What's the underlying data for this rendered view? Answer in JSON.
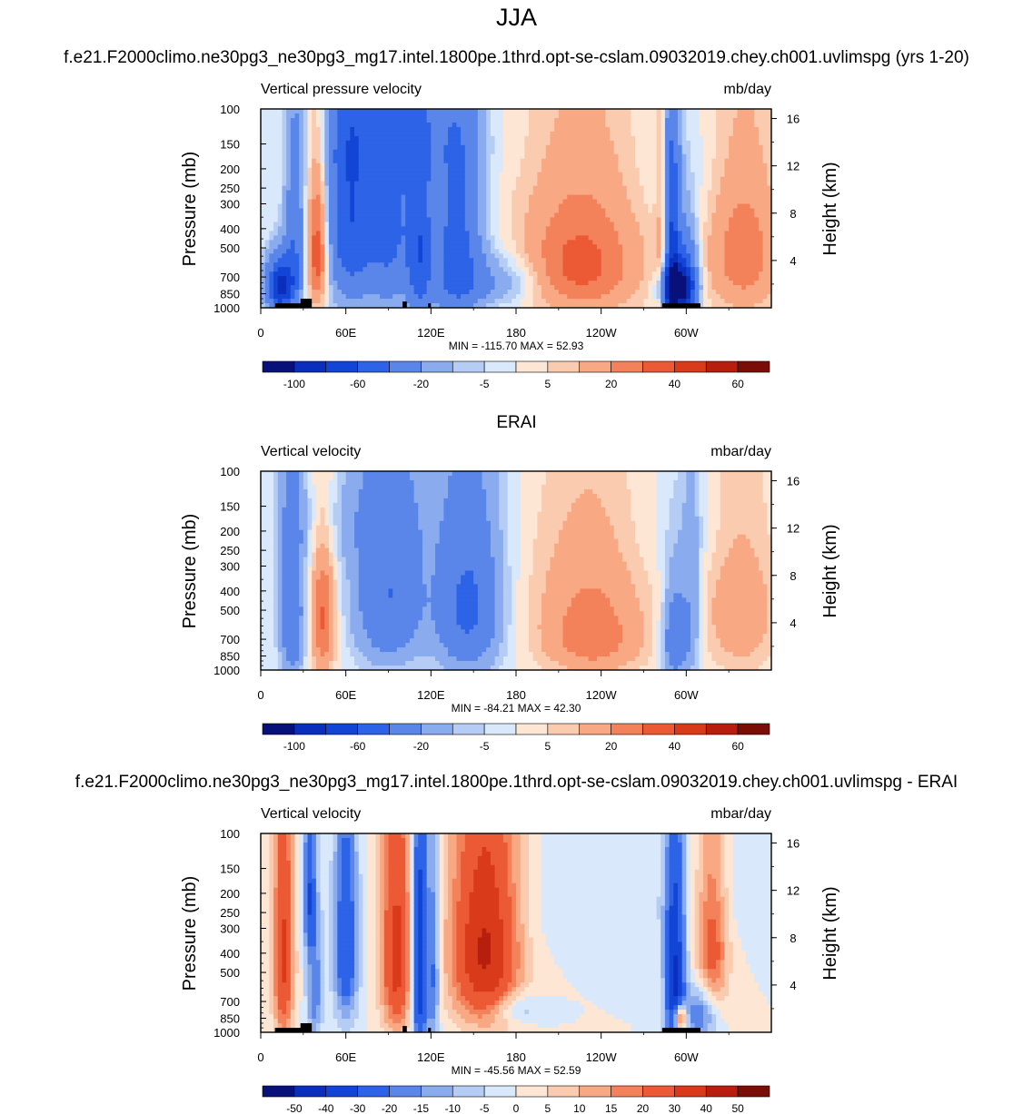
{
  "main_title": "JJA",
  "panels": [
    {
      "header": "f.e21.F2000climo.ne30pg3_ne30pg3_mg17.intel.1800pe.1thrd.opt-se-cslam.09032019.chey.ch001.uvlimspg (yrs 1-20)",
      "left_label": "Vertical pressure velocity",
      "right_label": "mb/day",
      "ylabel": "Pressure (mb)",
      "y2label": "Height (km)",
      "stats": "MIN = -115.70  MAX =  52.93",
      "kind": "model"
    },
    {
      "header": "ERAI",
      "left_label": "Vertical velocity",
      "right_label": "mbar/day",
      "ylabel": "Pressure (mb)",
      "y2label": "Height (km)",
      "stats": "MIN = -84.21  MAX =  42.30",
      "kind": "obs"
    },
    {
      "header": "f.e21.F2000climo.ne30pg3_ne30pg3_mg17.intel.1800pe.1thrd.opt-se-cslam.09032019.chey.ch001.uvlimspg - ERAI",
      "left_label": "Vertical velocity",
      "right_label": "mbar/day",
      "ylabel": "Pressure (mb)",
      "y2label": "Height (km)",
      "stats": "MIN = -45.56  MAX =  52.59",
      "kind": "diff"
    }
  ],
  "colors": {
    "blues": [
      "#08107a",
      "#0a2fbd",
      "#1245d6",
      "#2d63e6",
      "#5a86ea",
      "#8aacef",
      "#b5cdf5",
      "#d9e8fb"
    ],
    "reds": [
      "#fde6d4",
      "#fbcbb0",
      "#f8a883",
      "#f3825a",
      "#ec5a35",
      "#d93a1a",
      "#b71e0d",
      "#7a0d05"
    ]
  },
  "chart_data": [
    {
      "type": "contour",
      "title": "Vertical pressure velocity",
      "units": "mb/day",
      "x_ticks": [
        "0",
        "60E",
        "120E",
        "180",
        "120W",
        "60W"
      ],
      "x_tick_lon": [
        0,
        60,
        120,
        180,
        240,
        300
      ],
      "xlim": [
        0,
        360
      ],
      "y_ticks": [
        "100",
        "150",
        "200",
        "250",
        "300",
        "400",
        "500",
        "700",
        "850",
        "1000"
      ],
      "y_tick_p": [
        100,
        150,
        200,
        250,
        300,
        400,
        500,
        700,
        850,
        1000
      ],
      "ylim": [
        1000,
        100
      ],
      "y2_ticks": [
        "16",
        "12",
        "8",
        "4"
      ],
      "y2_tick_km": [
        16,
        12,
        8,
        4
      ],
      "colorbar_levels": [
        -100,
        -80,
        -60,
        -40,
        -20,
        -10,
        -5,
        0,
        5,
        10,
        20,
        30,
        40,
        50,
        60
      ],
      "colorbar_labels": [
        "-100",
        "-60",
        "-20",
        "-5",
        "5",
        "20",
        "40",
        "60"
      ],
      "colorbar_label_levels": [
        -100,
        -60,
        -20,
        -5,
        5,
        20,
        40,
        60
      ],
      "min": -115.7,
      "max": 52.93,
      "features": [
        {
          "lon": 14,
          "p": 780,
          "sw": 7,
          "sp": 170,
          "a": -85
        },
        {
          "lon": 24,
          "p": 450,
          "sw": 5,
          "sp": 320,
          "a": -35
        },
        {
          "lon": 40,
          "p": 520,
          "sw": 5,
          "sp": 280,
          "a": 42
        },
        {
          "lon": 62,
          "p": 330,
          "sw": 11,
          "sp": 380,
          "a": -55
        },
        {
          "lon": 90,
          "p": 380,
          "sw": 13,
          "sp": 380,
          "a": -45
        },
        {
          "lon": 112,
          "p": 500,
          "sw": 6,
          "sp": 420,
          "a": -45
        },
        {
          "lon": 138,
          "p": 480,
          "sw": 12,
          "sp": 420,
          "a": -48
        },
        {
          "lon": 165,
          "p": 740,
          "sw": 28,
          "sp": 160,
          "a": -22
        },
        {
          "lon": 100,
          "p": 150,
          "sw": 35,
          "sp": 60,
          "a": -15
        },
        {
          "lon": 228,
          "p": 520,
          "sw": 30,
          "sp": 340,
          "a": 25
        },
        {
          "lon": 215,
          "p": 700,
          "sw": 28,
          "sp": 220,
          "a": 14
        },
        {
          "lon": 290,
          "p": 560,
          "sw": 4,
          "sp": 420,
          "a": -65
        },
        {
          "lon": 293,
          "p": 800,
          "sw": 7,
          "sp": 120,
          "a": -100
        },
        {
          "lon": 300,
          "p": 720,
          "sw": 6,
          "sp": 240,
          "a": -55
        },
        {
          "lon": 283,
          "p": 500,
          "sw": 3,
          "sp": 500,
          "a": 16
        },
        {
          "lon": 340,
          "p": 520,
          "sw": 18,
          "sp": 330,
          "a": 28
        },
        {
          "lon": 305,
          "p": 220,
          "sw": 40,
          "sp": 150,
          "a": -4
        }
      ],
      "topography": [
        [
          10,
          34,
          950
        ],
        [
          28,
          36,
          900
        ],
        [
          100,
          103,
          930
        ],
        [
          118,
          120,
          950
        ],
        [
          283,
          310,
          950
        ]
      ]
    },
    {
      "type": "contour",
      "title": "Vertical velocity",
      "units": "mbar/day",
      "x_ticks": [
        "0",
        "60E",
        "120E",
        "180",
        "120W",
        "60W"
      ],
      "x_tick_lon": [
        0,
        60,
        120,
        180,
        240,
        300
      ],
      "xlim": [
        0,
        360
      ],
      "y_ticks": [
        "100",
        "150",
        "200",
        "250",
        "300",
        "400",
        "500",
        "700",
        "850",
        "1000"
      ],
      "y_tick_p": [
        100,
        150,
        200,
        250,
        300,
        400,
        500,
        700,
        850,
        1000
      ],
      "ylim": [
        1000,
        100
      ],
      "y2_ticks": [
        "16",
        "12",
        "8",
        "4"
      ],
      "y2_tick_km": [
        16,
        12,
        8,
        4
      ],
      "colorbar_levels": [
        -100,
        -80,
        -60,
        -40,
        -20,
        -10,
        -5,
        0,
        5,
        10,
        20,
        30,
        40,
        50,
        60
      ],
      "colorbar_labels": [
        "-100",
        "-60",
        "-20",
        "-5",
        "5",
        "20",
        "40",
        "60"
      ],
      "colorbar_label_levels": [
        -100,
        -60,
        -20,
        -5,
        5,
        20,
        40,
        60
      ],
      "min": -84.21,
      "max": 42.3,
      "features": [
        {
          "lon": 22,
          "p": 520,
          "sw": 6,
          "sp": 380,
          "a": -38
        },
        {
          "lon": 44,
          "p": 560,
          "sw": 6,
          "sp": 300,
          "a": 32
        },
        {
          "lon": 90,
          "p": 420,
          "sw": 17,
          "sp": 330,
          "a": -40
        },
        {
          "lon": 146,
          "p": 480,
          "sw": 16,
          "sp": 340,
          "a": -45
        },
        {
          "lon": 60,
          "p": 180,
          "sw": 40,
          "sp": 80,
          "a": -8
        },
        {
          "lon": 232,
          "p": 500,
          "sw": 28,
          "sp": 330,
          "a": 20
        },
        {
          "lon": 235,
          "p": 760,
          "sw": 22,
          "sp": 180,
          "a": 12
        },
        {
          "lon": 292,
          "p": 700,
          "sw": 6,
          "sp": 260,
          "a": -38
        },
        {
          "lon": 304,
          "p": 520,
          "sw": 5,
          "sp": 380,
          "a": -18
        },
        {
          "lon": 338,
          "p": 480,
          "sw": 18,
          "sp": 340,
          "a": 18
        },
        {
          "lon": 310,
          "p": 200,
          "sw": 40,
          "sp": 120,
          "a": -4
        }
      ],
      "topography": []
    },
    {
      "type": "contour",
      "title": "Vertical velocity",
      "units": "mbar/day",
      "x_ticks": [
        "0",
        "60E",
        "120E",
        "180",
        "120W",
        "60W"
      ],
      "x_tick_lon": [
        0,
        60,
        120,
        180,
        240,
        300
      ],
      "xlim": [
        0,
        360
      ],
      "y_ticks": [
        "100",
        "150",
        "200",
        "250",
        "300",
        "400",
        "500",
        "700",
        "850",
        "1000"
      ],
      "y_tick_p": [
        100,
        150,
        200,
        250,
        300,
        400,
        500,
        700,
        850,
        1000
      ],
      "ylim": [
        1000,
        100
      ],
      "y2_ticks": [
        "16",
        "12",
        "8",
        "4"
      ],
      "y2_tick_km": [
        16,
        12,
        8,
        4
      ],
      "colorbar_levels": [
        -50,
        -40,
        -30,
        -20,
        -15,
        -10,
        -5,
        0,
        5,
        10,
        15,
        20,
        30,
        40,
        50
      ],
      "colorbar_labels": [
        "-50",
        "-40",
        "-30",
        "-20",
        "-15",
        "-10",
        "-5",
        "0",
        "5",
        "10",
        "15",
        "20",
        "30",
        "40",
        "50"
      ],
      "colorbar_label_levels": [
        -50,
        -40,
        -30,
        -20,
        -15,
        -10,
        -5,
        0,
        5,
        10,
        15,
        20,
        30,
        40,
        50
      ],
      "min": -45.56,
      "max": 52.59,
      "features": [
        {
          "lon": 16,
          "p": 420,
          "sw": 5,
          "sp": 420,
          "a": 32
        },
        {
          "lon": 34,
          "p": 200,
          "sw": 3,
          "sp": 120,
          "a": -25
        },
        {
          "lon": 38,
          "p": 600,
          "sw": 4,
          "sp": 320,
          "a": -20
        },
        {
          "lon": 60,
          "p": 380,
          "sw": 6,
          "sp": 320,
          "a": -30
        },
        {
          "lon": 96,
          "p": 420,
          "sw": 8,
          "sp": 360,
          "a": 35
        },
        {
          "lon": 112,
          "p": 480,
          "sw": 4,
          "sp": 440,
          "a": -45
        },
        {
          "lon": 122,
          "p": 500,
          "sw": 3,
          "sp": 400,
          "a": -22
        },
        {
          "lon": 158,
          "p": 380,
          "sw": 17,
          "sp": 330,
          "a": 42
        },
        {
          "lon": 180,
          "p": 760,
          "sw": 12,
          "sp": 90,
          "a": -12
        },
        {
          "lon": 292,
          "p": 560,
          "sw": 5,
          "sp": 420,
          "a": -42
        },
        {
          "lon": 296,
          "p": 850,
          "sw": 3,
          "sp": 90,
          "a": 45
        },
        {
          "lon": 310,
          "p": 800,
          "sw": 8,
          "sp": 180,
          "a": -22
        },
        {
          "lon": 318,
          "p": 380,
          "sw": 8,
          "sp": 260,
          "a": 25
        },
        {
          "lon": 240,
          "p": 220,
          "sw": 50,
          "sp": 120,
          "a": -4
        },
        {
          "lon": 345,
          "p": 200,
          "sw": 22,
          "sp": 90,
          "a": -3
        }
      ],
      "topography": [
        [
          10,
          34,
          950
        ],
        [
          28,
          36,
          900
        ],
        [
          100,
          103,
          930
        ],
        [
          118,
          120,
          950
        ],
        [
          283,
          310,
          950
        ]
      ]
    }
  ]
}
